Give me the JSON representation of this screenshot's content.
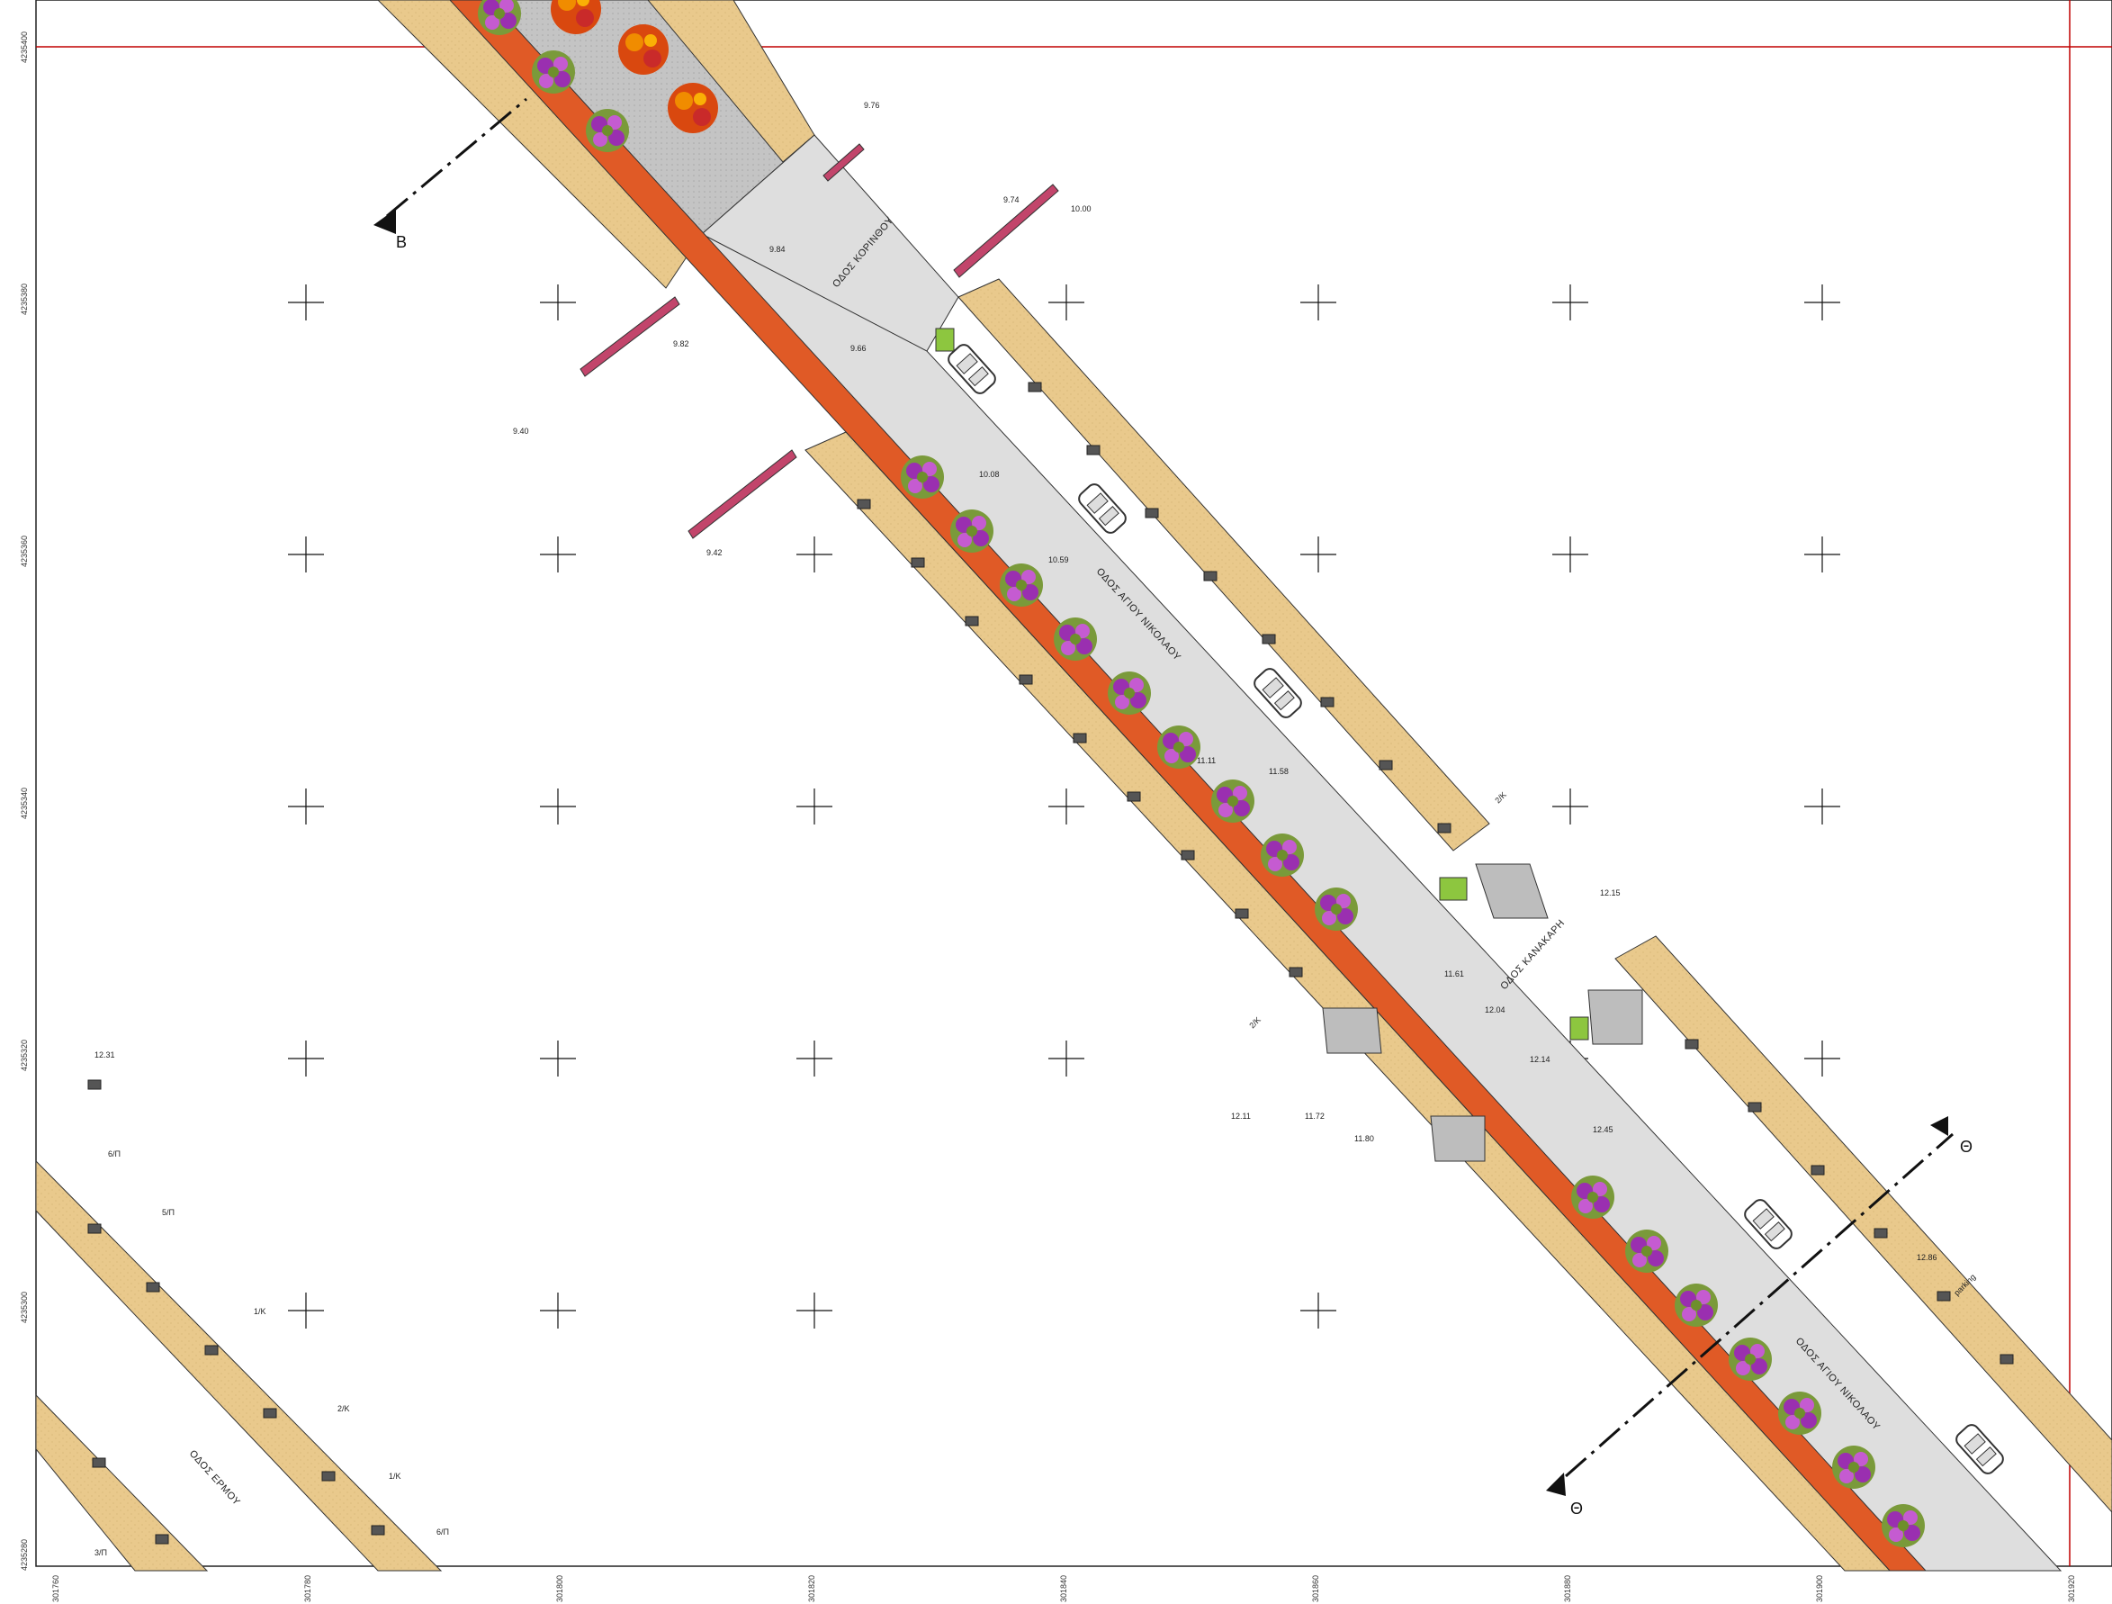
{
  "grid": {
    "y_labels": [
      "4235400",
      "4235380",
      "4235360",
      "4235340",
      "4235320",
      "4235300",
      "4235280"
    ],
    "x_labels": [
      "301760",
      "301780",
      "301800",
      "301820",
      "301840",
      "301860",
      "301880",
      "301900",
      "301920"
    ]
  },
  "streets": {
    "korinthou": "ΟΔΟΣ ΚΟΡΙΝΘΟΥ",
    "agiou_nikolaou_1": "ΟΔΟΣ ΑΓΙΟΥ ΝΙΚΟΛΑΟΥ",
    "agiou_nikolaou_2": "ΟΔΟΣ ΑΓΙΟΥ ΝΙΚΟΛΑΟΥ",
    "kanakari": "ΟΔΟΣ ΚΑΝΑΚΑΡΗ",
    "ermou": "ΟΔΟΣ ΕΡΜΟΥ"
  },
  "section_marks": {
    "b": "B",
    "theta_top": "Θ",
    "theta_bottom": "Θ"
  },
  "building_labels": {
    "l1": "6/Π",
    "l2": "5/Π",
    "l3": "1/Κ",
    "l4": "2/Κ",
    "l5": "1/Κ",
    "l6": "6/Π",
    "l7": "3/Π",
    "l8": "2/Κ",
    "l9": "2/Κ"
  },
  "annotations": {
    "parking": "parking",
    "e1": "9.76",
    "e2": "9.74",
    "e3": "10.00",
    "e4": "9.84",
    "e5": "9.66",
    "e6": "10.08",
    "e7": "11.11",
    "e8": "11.58",
    "e9": "11.61",
    "e10": "12.04",
    "e11": "12.15",
    "e12": "12.14",
    "e13": "12.45",
    "e14": "11.80",
    "e15": "12.11",
    "e16": "11.72",
    "e17": "12.31",
    "e18": "9.42",
    "e19": "9.40",
    "e20": "9.82",
    "e21": "10.59",
    "e22": "12.86"
  },
  "colors": {
    "sidewalk": "#E9C98C",
    "road": "#DEDEDE",
    "bike_lane": "#E05A26",
    "plaza": "#BDBDBD",
    "crossing": "#C2456B",
    "grass": "#8DC63F",
    "frame": "#C00000"
  }
}
